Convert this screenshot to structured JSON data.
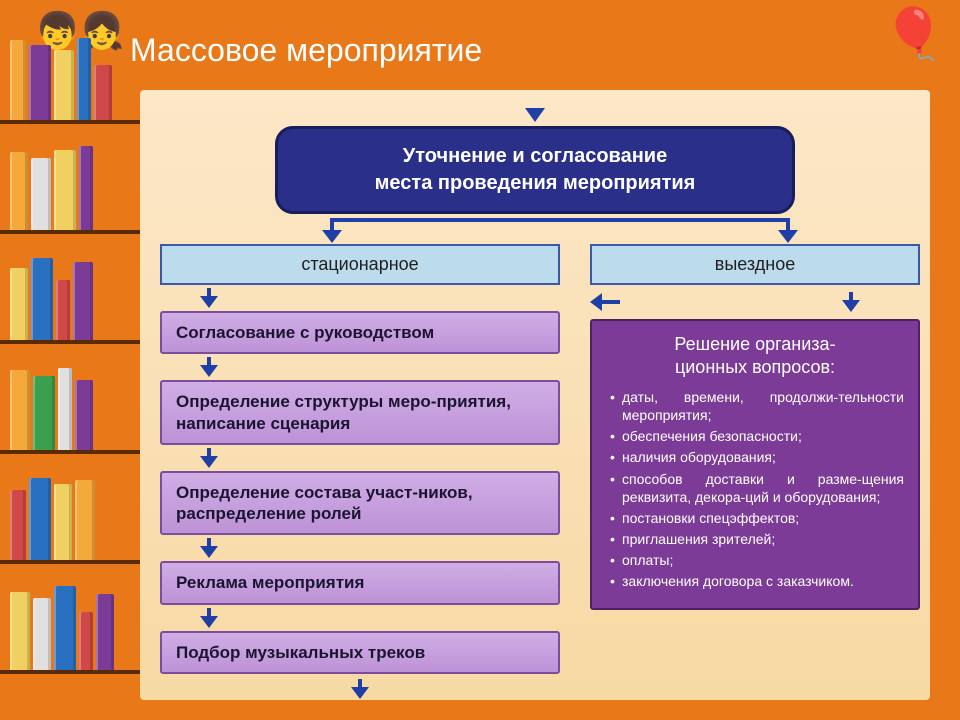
{
  "title": "Массовое мероприятие",
  "main_box_line1": "Уточнение и согласование",
  "main_box_line2": "места проведения мероприятия",
  "left_header": "стационарное",
  "right_header": "выездное",
  "steps": {
    "s1": "Согласование с руководством",
    "s2": "Определение структуры меро-приятия, написание сценария",
    "s3": "Определение состава участ-ников, распределение ролей",
    "s4": "Реклама мероприятия",
    "s5": "Подбор музыкальных треков"
  },
  "right_panel_title_l1": "Решение организа-",
  "right_panel_title_l2": "ционных вопросов:",
  "right_items": {
    "i1": "даты, времени, продолжи-тельности мероприятия;",
    "i2": "обеспечения безопасности;",
    "i3": "наличия оборудования;",
    "i4": "способов доставки и разме-щения реквизита, декора-ций и оборудования;",
    "i5": "постановки спецэффектов;",
    "i6": "приглашения зрителей;",
    "i7": "оплаты;",
    "i8": "заключения договора с заказчиком."
  },
  "books": {
    "shelves": [
      [
        {
          "c": "#f4a93a",
          "w": 16,
          "h": 80
        },
        {
          "c": "#7c3b96",
          "w": 22,
          "h": 75
        },
        {
          "c": "#f0d060",
          "w": 20,
          "h": 70
        },
        {
          "c": "#2a70c0",
          "w": 14,
          "h": 82
        },
        {
          "c": "#d04848",
          "w": 18,
          "h": 55
        }
      ],
      [
        {
          "c": "#f4a93a",
          "w": 18,
          "h": 78
        },
        {
          "c": "#e0e0e0",
          "w": 20,
          "h": 72
        },
        {
          "c": "#f0d060",
          "w": 22,
          "h": 80
        },
        {
          "c": "#7c3b96",
          "w": 14,
          "h": 84
        }
      ],
      [
        {
          "c": "#f0d060",
          "w": 18,
          "h": 72
        },
        {
          "c": "#2a70c0",
          "w": 22,
          "h": 82
        },
        {
          "c": "#d04848",
          "w": 14,
          "h": 60
        },
        {
          "c": "#7c3b96",
          "w": 20,
          "h": 78
        }
      ],
      [
        {
          "c": "#f4a93a",
          "w": 20,
          "h": 80
        },
        {
          "c": "#3aa050",
          "w": 22,
          "h": 74
        },
        {
          "c": "#e0e0e0",
          "w": 14,
          "h": 82
        },
        {
          "c": "#7c3b96",
          "w": 18,
          "h": 70
        }
      ],
      [
        {
          "c": "#d04848",
          "w": 16,
          "h": 70
        },
        {
          "c": "#2a70c0",
          "w": 22,
          "h": 82
        },
        {
          "c": "#f0d060",
          "w": 18,
          "h": 76
        },
        {
          "c": "#f4a93a",
          "w": 20,
          "h": 80
        }
      ],
      [
        {
          "c": "#f0d060",
          "w": 20,
          "h": 78
        },
        {
          "c": "#e0e0e0",
          "w": 18,
          "h": 72
        },
        {
          "c": "#2a70c0",
          "w": 22,
          "h": 84
        },
        {
          "c": "#d04848",
          "w": 14,
          "h": 58
        },
        {
          "c": "#7c3b96",
          "w": 18,
          "h": 76
        }
      ]
    ]
  },
  "colors": {
    "slide_bg": "#e87818",
    "content_bg_top": "#fce7c7",
    "content_bg_bottom": "#f7d9a4",
    "arrow": "#1f3fa6",
    "mainbox_bg": "#2a2f8a",
    "header_small_bg": "#bcdced",
    "step_bg": "#c59de0",
    "right_panel_bg": "#7c3b96"
  }
}
